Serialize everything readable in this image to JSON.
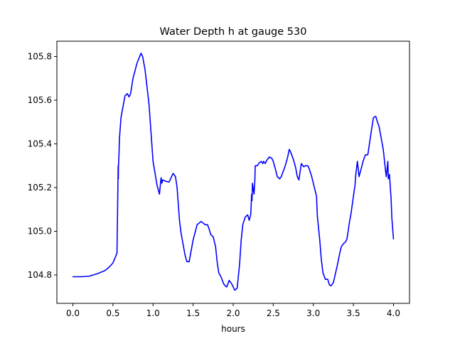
{
  "chart_data": {
    "type": "line",
    "title": "Water Depth h at gauge 530",
    "xlabel": "hours",
    "ylabel": "",
    "xlim": [
      -0.2,
      4.2
    ],
    "ylim": [
      104.67,
      105.87
    ],
    "xticks": [
      0.0,
      0.5,
      1.0,
      1.5,
      2.0,
      2.5,
      3.0,
      3.5,
      4.0
    ],
    "xtick_labels": [
      "0.0",
      "0.5",
      "1.0",
      "1.5",
      "2.0",
      "2.5",
      "3.0",
      "3.5",
      "4.0"
    ],
    "yticks": [
      104.8,
      105.0,
      105.2,
      105.4,
      105.6,
      105.8
    ],
    "ytick_labels": [
      "104.8",
      "105.0",
      "105.2",
      "105.4",
      "105.6",
      "105.8"
    ],
    "grid": false,
    "series": [
      {
        "color": "#0000ff",
        "x": [
          0.0,
          0.1,
          0.2,
          0.3,
          0.4,
          0.45,
          0.5,
          0.55,
          0.565,
          0.567,
          0.568,
          0.575,
          0.58,
          0.6,
          0.62,
          0.65,
          0.68,
          0.7,
          0.72,
          0.75,
          0.8,
          0.85,
          0.87,
          0.9,
          0.95,
          1.0,
          1.05,
          1.08,
          1.1,
          1.11,
          1.12,
          1.15,
          1.2,
          1.25,
          1.28,
          1.3,
          1.33,
          1.35,
          1.38,
          1.4,
          1.42,
          1.45,
          1.5,
          1.55,
          1.6,
          1.65,
          1.68,
          1.7,
          1.72,
          1.75,
          1.78,
          1.8,
          1.82,
          1.85,
          1.88,
          1.9,
          1.92,
          1.95,
          1.98,
          2.0,
          2.02,
          2.05,
          2.08,
          2.1,
          2.12,
          2.15,
          2.18,
          2.2,
          2.22,
          2.23,
          2.235,
          2.24,
          2.26,
          2.27,
          2.275,
          2.3,
          2.33,
          2.35,
          2.37,
          2.38,
          2.4,
          2.42,
          2.45,
          2.48,
          2.5,
          2.53,
          2.55,
          2.58,
          2.6,
          2.63,
          2.65,
          2.68,
          2.7,
          2.72,
          2.75,
          2.78,
          2.8,
          2.82,
          2.85,
          2.87,
          2.88,
          2.9,
          2.93,
          2.95,
          2.98,
          3.0,
          3.02,
          3.04,
          3.05,
          3.08,
          3.1,
          3.12,
          3.15,
          3.18,
          3.2,
          3.22,
          3.25,
          3.3,
          3.33,
          3.35,
          3.38,
          3.4,
          3.42,
          3.43,
          3.45,
          3.47,
          3.5,
          3.52,
          3.53,
          3.54,
          3.55,
          3.57,
          3.6,
          3.62,
          3.65,
          3.68,
          3.7,
          3.72,
          3.75,
          3.77,
          3.78,
          3.8,
          3.82,
          3.85,
          3.87,
          3.88,
          3.9,
          3.91,
          3.93,
          3.935,
          3.95,
          3.97,
          3.98,
          4.0
        ],
        "y": [
          104.792,
          104.792,
          104.794,
          104.805,
          104.82,
          104.835,
          104.855,
          104.9,
          105.3,
          105.24,
          105.29,
          105.35,
          105.42,
          105.52,
          105.56,
          105.62,
          105.63,
          105.615,
          105.63,
          105.7,
          105.77,
          105.815,
          105.8,
          105.74,
          105.58,
          105.32,
          105.21,
          105.17,
          105.245,
          105.22,
          105.235,
          105.23,
          105.225,
          105.265,
          105.25,
          105.2,
          105.05,
          104.99,
          104.93,
          104.89,
          104.862,
          104.86,
          104.96,
          105.03,
          105.045,
          105.03,
          105.03,
          105.01,
          104.985,
          104.975,
          104.93,
          104.86,
          104.81,
          104.79,
          104.76,
          104.75,
          104.745,
          104.775,
          104.76,
          104.745,
          104.73,
          104.74,
          104.85,
          104.96,
          105.03,
          105.065,
          105.075,
          105.05,
          105.08,
          105.17,
          105.14,
          105.22,
          105.17,
          105.23,
          105.3,
          105.3,
          105.315,
          105.32,
          105.31,
          105.32,
          105.31,
          105.325,
          105.34,
          105.335,
          105.32,
          105.28,
          105.25,
          105.24,
          105.25,
          105.28,
          105.3,
          105.34,
          105.375,
          105.36,
          105.33,
          105.29,
          105.25,
          105.235,
          105.31,
          105.3,
          105.295,
          105.3,
          105.3,
          105.285,
          105.25,
          105.22,
          105.19,
          105.16,
          105.07,
          104.96,
          104.87,
          104.81,
          104.78,
          104.78,
          104.755,
          104.75,
          104.765,
          104.845,
          104.9,
          104.93,
          104.945,
          104.95,
          104.965,
          104.99,
          105.04,
          105.08,
          105.16,
          105.21,
          105.26,
          105.29,
          105.32,
          105.25,
          105.29,
          105.32,
          105.35,
          105.35,
          105.4,
          105.45,
          105.52,
          105.525,
          105.525,
          105.5,
          105.48,
          105.42,
          105.38,
          105.35,
          105.28,
          105.25,
          105.32,
          105.24,
          105.26,
          105.15,
          105.06,
          104.965
        ]
      }
    ]
  }
}
